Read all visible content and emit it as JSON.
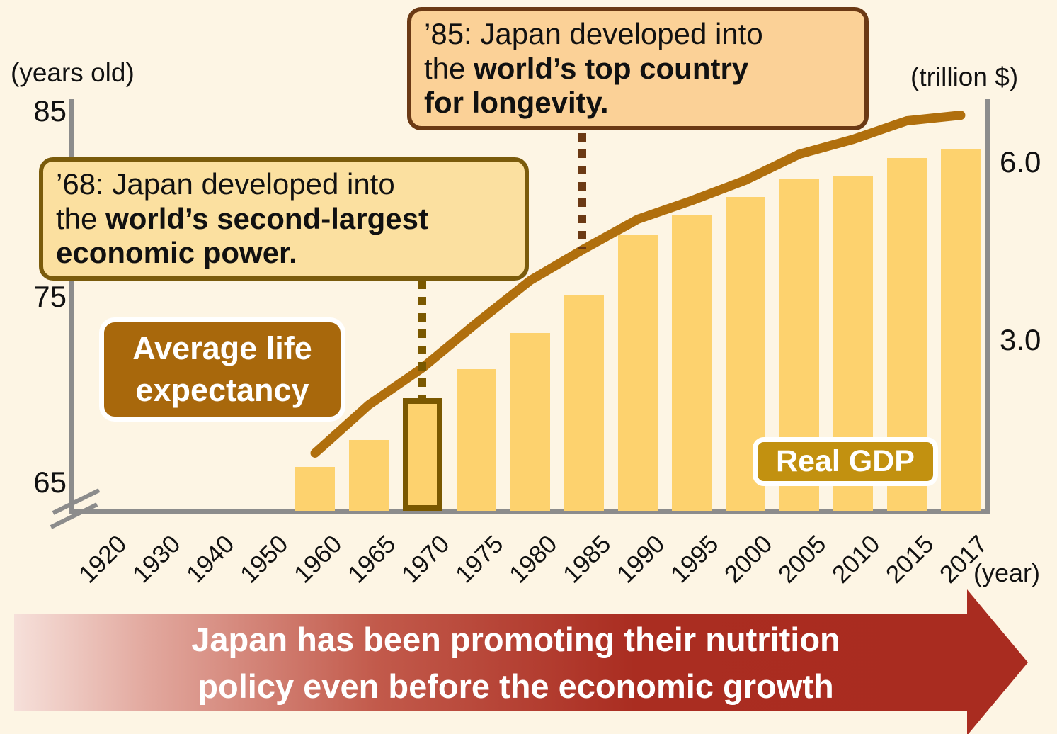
{
  "chart_data": {
    "type": "bar",
    "categories": [
      "1920",
      "1930",
      "1940",
      "1950",
      "1960",
      "1965",
      "1970",
      "1975",
      "1980",
      "1985",
      "1990",
      "1995",
      "2000",
      "2005",
      "2010",
      "2015",
      "2017"
    ],
    "series": [
      {
        "name": "Real GDP",
        "kind": "bar",
        "axis": "right",
        "unit": "trillion $",
        "values": [
          null,
          null,
          null,
          null,
          0.9,
          1.35,
          2.05,
          2.55,
          3.15,
          3.8,
          4.8,
          5.15,
          5.45,
          5.75,
          5.8,
          6.1,
          6.25
        ]
      },
      {
        "name": "Average life expectancy",
        "kind": "line",
        "axis": "left",
        "unit": "years old",
        "values": [
          null,
          null,
          null,
          null,
          66.7,
          69.3,
          71.3,
          73.7,
          76.0,
          77.7,
          79.3,
          80.3,
          81.4,
          82.8,
          83.6,
          84.6,
          84.9
        ]
      }
    ],
    "left_axis": {
      "label": "(years old)",
      "ticks": [
        "85",
        "75",
        "65"
      ],
      "tick_values": [
        85,
        75,
        65
      ],
      "range": [
        65,
        85
      ],
      "axis_break": true
    },
    "right_axis": {
      "label": "(trillion $)",
      "ticks": [
        "6.0",
        "3.0"
      ],
      "tick_values": [
        6.0,
        3.0
      ],
      "range": [
        0,
        6.6
      ]
    },
    "xlabel": "(year)",
    "highlighted_category": "1970",
    "grid": false,
    "legend_position": "inline-badges"
  },
  "annotations": {
    "box85": {
      "lines": [
        [
          {
            "t": "’85: Japan developed into",
            "b": false
          }
        ],
        [
          {
            "t": "the ",
            "b": false
          },
          {
            "t": "world’s top country",
            "b": true
          }
        ],
        [
          {
            "t": "for longevity.",
            "b": true
          }
        ]
      ]
    },
    "box68": {
      "lines": [
        [
          {
            "t": "’68: Japan developed into",
            "b": false
          }
        ],
        [
          {
            "t": "the ",
            "b": false
          },
          {
            "t": "world’s second-largest",
            "b": true
          }
        ],
        [
          {
            "t": "economic power.",
            "b": true
          }
        ]
      ]
    }
  },
  "badges": {
    "life_line1": "Average life",
    "life_line2": "expectancy",
    "gdp": "Real GDP"
  },
  "banner": {
    "lines": [
      "Japan has been promoting their nutrition",
      "policy even before the economic growth"
    ]
  },
  "colors": {
    "background": "#FDF5E4",
    "bar_fill": "#FDD26E",
    "bar_highlight_border": "#7A5800",
    "life_line": "#B06F0D",
    "axis_gray": "#8C8C8C",
    "box85_bg": "#FBD197",
    "box85_border": "#6B3914",
    "box68_bg": "#FBE0A0",
    "box68_border": "#7A5B0B",
    "life_badge_bg": "#A8680C",
    "gdp_badge_bg": "#C29110",
    "banner_red": "#A92C20",
    "banner_pale": "#F6E0DA",
    "dotted_68": "#7A5800",
    "dotted_85": "#6B3914"
  }
}
